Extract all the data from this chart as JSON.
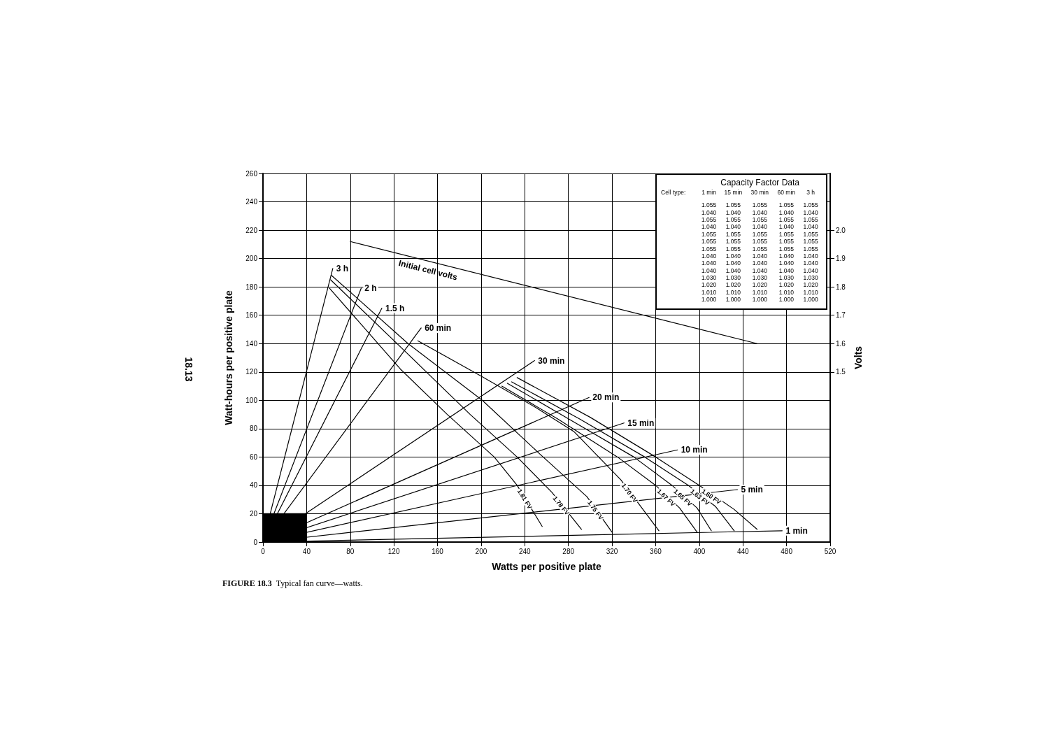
{
  "chart_data": {
    "type": "line",
    "xlabel": "Watts per positive plate",
    "ylabel": "Watt-hours per positive plate",
    "y2label": "Volts",
    "xlim": [
      0,
      520
    ],
    "xticks": [
      0,
      40,
      80,
      120,
      160,
      200,
      240,
      280,
      320,
      360,
      400,
      440,
      480,
      520
    ],
    "ylim": [
      0,
      260
    ],
    "yticks": [
      0,
      20,
      40,
      60,
      80,
      100,
      120,
      140,
      160,
      180,
      200,
      220,
      240,
      260
    ],
    "y2lim": [
      0.9,
      2.2
    ],
    "y2ticks": [
      1.5,
      1.6,
      1.7,
      1.8,
      1.9,
      {
        "value": 2,
        "label": "2.0"
      }
    ],
    "grid": true,
    "legend": false,
    "marker": "none",
    "line_style": "solid",
    "series": [
      {
        "name": "3 h",
        "color": "#000000",
        "x": [
          0,
          64
        ],
        "values": [
          0,
          193
        ]
      },
      {
        "name": "2 h",
        "color": "#000000",
        "x": [
          0,
          90
        ],
        "values": [
          0,
          179
        ]
      },
      {
        "name": "1.5 h",
        "color": "#000000",
        "x": [
          0,
          109
        ],
        "values": [
          0,
          165
        ]
      },
      {
        "name": "60 min",
        "color": "#000000",
        "x": [
          0,
          145
        ],
        "values": [
          0,
          151
        ]
      },
      {
        "name": "30 min",
        "color": "#000000",
        "x": [
          0,
          249
        ],
        "values": [
          0,
          128
        ]
      },
      {
        "name": "20 min",
        "color": "#000000",
        "x": [
          0,
          299
        ],
        "values": [
          0,
          102
        ]
      },
      {
        "name": "15 min",
        "color": "#000000",
        "x": [
          0,
          331
        ],
        "values": [
          0,
          84
        ]
      },
      {
        "name": "10 min",
        "color": "#000000",
        "x": [
          0,
          380
        ],
        "values": [
          0,
          65
        ]
      },
      {
        "name": "5 min",
        "color": "#000000",
        "x": [
          0,
          435
        ],
        "values": [
          0,
          37
        ]
      },
      {
        "name": "1 min",
        "color": "#000000",
        "x": [
          0,
          476
        ],
        "values": [
          0,
          8
        ]
      },
      {
        "name": "1.81 FV",
        "color": "#000000",
        "x": [
          61,
          126,
          169,
          212,
          233,
          256
        ],
        "values": [
          179,
          122,
          90,
          60,
          40,
          11
        ]
      },
      {
        "name": "1.78 FV",
        "color": "#000000",
        "x": [
          62,
          131,
          190,
          233,
          265,
          292
        ],
        "values": [
          185,
          134,
          90,
          60,
          35,
          9
        ]
      },
      {
        "name": "1.75 FV",
        "color": "#000000",
        "x": [
          63,
          133,
          201,
          254,
          297,
          320
        ],
        "values": [
          188,
          140,
          100,
          62,
          32,
          7
        ]
      },
      {
        "name": "1.70 FV",
        "color": "#000000",
        "x": [
          142,
          200,
          250,
          285,
          328,
          363
        ],
        "values": [
          142,
          117,
          95,
          78,
          44,
          8
        ]
      },
      {
        "name": "1.67 FV",
        "color": "#000000",
        "x": [
          219,
          270,
          325,
          360,
          382,
          398
        ],
        "values": [
          110,
          87,
          60,
          40,
          24,
          7
        ]
      },
      {
        "name": "1.65 FV",
        "color": "#000000",
        "x": [
          224,
          280,
          340,
          375,
          398,
          411
        ],
        "values": [
          112,
          87,
          60,
          40,
          24,
          8
        ]
      },
      {
        "name": "1.63 FV",
        "color": "#000000",
        "x": [
          228,
          290,
          350,
          390,
          415,
          432
        ],
        "values": [
          113,
          87,
          60,
          40,
          25,
          8
        ]
      },
      {
        "name": "1.60 FV",
        "color": "#000000",
        "x": [
          233,
          300,
          360,
          400,
          432,
          453
        ],
        "values": [
          116,
          88,
          60,
          40,
          23,
          9
        ]
      },
      {
        "name": "Initial cell volts",
        "color": "#000000",
        "axis": "y2",
        "x": [
          80,
          453
        ],
        "values": [
          1.96,
          1.6
        ]
      },
      {
        "type": "area",
        "color": "#000000",
        "x": [
          0,
          40
        ],
        "values": [
          20,
          20
        ]
      }
    ],
    "annotations": [
      "Capacity Factor Data",
      "Cell type:  1 min  15 min  30 min  60 min  3 h",
      "1.055  1.055  1.055  1.055  1.055",
      "1.040  1.040  1.040  1.040  1.040",
      "1.055  1.055  1.055  1.055  1.055",
      "1.040  1.040  1.040  1.040  1.040",
      "1.055  1.055  1.055  1.055  1.055",
      "1.055  1.055  1.055  1.055  1.055",
      "1.055  1.055  1.055  1.055  1.055",
      "1.040  1.040  1.040  1.040  1.040",
      "1.040  1.040  1.040  1.040  1.040",
      "1.040  1.040  1.040  1.040  1.040",
      "1.030  1.030  1.030  1.030  1.030",
      "1.020  1.020  1.020  1.020  1.020",
      "1.010  1.010  1.010  1.010  1.010",
      "1.000  1.000  1.000  1.000  1.000",
      "18.13",
      "FIGURE 18.3  Typical fan curve—watts."
    ]
  }
}
